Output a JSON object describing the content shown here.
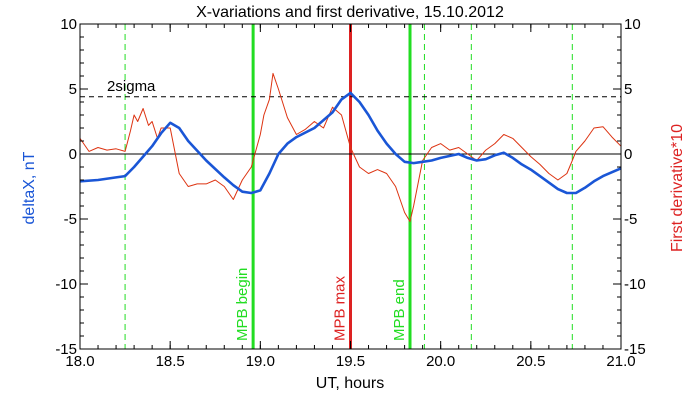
{
  "chart_data": {
    "type": "line",
    "title": "X-variations and first derivative, 15.10.2012",
    "xlabel": "UT, hours",
    "ylabel": "deltaX, nT",
    "ylabel_right": "First derivative*10",
    "xlim": [
      18.0,
      21.0
    ],
    "ylim": [
      -15,
      10
    ],
    "xticks": [
      18.0,
      18.5,
      19.0,
      19.5,
      20.0,
      20.5,
      21.0
    ],
    "xtick_labels": [
      "18.0",
      "18.5",
      "19.0",
      "19.5",
      "20.0",
      "20.5",
      "21.0"
    ],
    "yticks": [
      -15,
      -10,
      -5,
      0,
      5,
      10
    ],
    "ytick_labels": [
      "-15",
      "-10",
      "-5",
      "0",
      "5",
      "10"
    ],
    "grid": false,
    "threshold": {
      "label": "2sigma",
      "value": 4.4
    },
    "zero_line": 0,
    "markers": [
      {
        "label": "MPB begin",
        "x": 18.96,
        "color": "#22dd22"
      },
      {
        "label": "MPB max",
        "x": 19.5,
        "color": "#dd2222"
      },
      {
        "label": "MPB end",
        "x": 19.83,
        "color": "#22dd22"
      }
    ],
    "dashed_verticals": [
      18.25,
      19.91,
      20.17,
      20.73
    ],
    "series": [
      {
        "axis": "left",
        "color": "#1a56d6",
        "x": [
          18.0,
          18.1,
          18.2,
          18.25,
          18.3,
          18.35,
          18.4,
          18.45,
          18.5,
          18.55,
          18.6,
          18.7,
          18.8,
          18.85,
          18.9,
          18.95,
          19.0,
          19.05,
          19.1,
          19.15,
          19.2,
          19.3,
          19.4,
          19.45,
          19.5,
          19.55,
          19.6,
          19.65,
          19.7,
          19.75,
          19.8,
          19.85,
          19.9,
          19.95,
          20.0,
          20.1,
          20.15,
          20.2,
          20.25,
          20.3,
          20.35,
          20.4,
          20.45,
          20.5,
          20.55,
          20.6,
          20.65,
          20.7,
          20.75,
          20.8,
          20.85,
          20.9,
          21.0
        ],
        "y": [
          -2.1,
          -2.0,
          -1.8,
          -1.7,
          -1.0,
          -0.2,
          0.6,
          1.6,
          2.4,
          2.0,
          1.0,
          -0.5,
          -1.8,
          -2.4,
          -2.9,
          -3.0,
          -2.8,
          -1.5,
          0.0,
          0.8,
          1.3,
          2.0,
          3.2,
          4.2,
          4.7,
          4.0,
          3.0,
          1.8,
          0.8,
          0.0,
          -0.6,
          -0.7,
          -0.6,
          -0.5,
          -0.3,
          0.0,
          -0.3,
          -0.5,
          -0.4,
          -0.1,
          0.1,
          -0.3,
          -0.8,
          -1.2,
          -1.7,
          -2.2,
          -2.7,
          -3.0,
          -3.0,
          -2.6,
          -2.1,
          -1.7,
          -1.1
        ]
      },
      {
        "axis": "right",
        "color": "#dd3311",
        "x": [
          18.0,
          18.05,
          18.1,
          18.15,
          18.2,
          18.25,
          18.28,
          18.3,
          18.32,
          18.35,
          18.38,
          18.4,
          18.43,
          18.45,
          18.5,
          18.55,
          18.6,
          18.65,
          18.7,
          18.75,
          18.8,
          18.85,
          18.9,
          18.95,
          19.0,
          19.02,
          19.05,
          19.07,
          19.1,
          19.15,
          19.2,
          19.25,
          19.3,
          19.35,
          19.4,
          19.45,
          19.5,
          19.55,
          19.6,
          19.65,
          19.7,
          19.75,
          19.8,
          19.83,
          19.85,
          19.9,
          19.95,
          20.0,
          20.05,
          20.1,
          20.15,
          20.2,
          20.25,
          20.3,
          20.35,
          20.4,
          20.45,
          20.5,
          20.55,
          20.6,
          20.65,
          20.7,
          20.73,
          20.75,
          20.8,
          20.85,
          20.9,
          20.95,
          21.0
        ],
        "y": [
          1.2,
          0.2,
          0.5,
          0.3,
          0.4,
          0.2,
          1.8,
          3.0,
          2.5,
          3.5,
          2.2,
          2.5,
          1.2,
          2.0,
          2.0,
          -1.5,
          -2.5,
          -2.3,
          -2.3,
          -2.0,
          -2.5,
          -3.5,
          -2.0,
          -1.0,
          1.5,
          3.0,
          4.2,
          6.2,
          5.0,
          2.8,
          1.5,
          1.9,
          2.5,
          2.0,
          3.6,
          3.0,
          0.5,
          -1.0,
          -1.5,
          -1.2,
          -1.5,
          -2.5,
          -4.5,
          -5.2,
          -4.0,
          -0.5,
          0.5,
          0.8,
          0.3,
          0.5,
          0.0,
          -0.5,
          0.3,
          0.8,
          1.5,
          1.2,
          0.5,
          -0.2,
          -0.8,
          -1.5,
          -2.0,
          -1.5,
          -0.5,
          0.2,
          1.0,
          2.0,
          2.1,
          1.3,
          0.6
        ]
      }
    ]
  }
}
